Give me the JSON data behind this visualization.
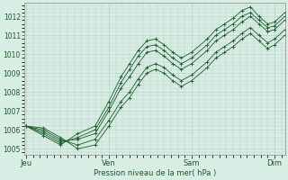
{
  "bg_color": "#d8ede4",
  "grid_color": "#b8d4c8",
  "line_color": "#1a5c28",
  "marker_color": "#1a5c28",
  "xlabel_text": "Pression niveau de la mer( hPa )",
  "x_tick_labels": [
    "Jeu",
    "Ven",
    "Sam",
    "Dim"
  ],
  "x_tick_positions": [
    0,
    96,
    192,
    288
  ],
  "ylim": [
    1004.7,
    1012.7
  ],
  "xlim": [
    -2,
    300
  ],
  "yticks": [
    1005,
    1006,
    1007,
    1008,
    1009,
    1010,
    1011,
    1012
  ],
  "series": [
    [
      0,
      1006.2,
      20,
      1005.8,
      40,
      1005.3,
      60,
      1005.6,
      80,
      1006.0,
      96,
      1007.2,
      110,
      1008.5,
      120,
      1009.2,
      130,
      1009.9,
      140,
      1010.4,
      150,
      1010.5,
      160,
      1010.2,
      170,
      1009.8,
      180,
      1009.5,
      192,
      1009.8,
      210,
      1010.5,
      220,
      1011.0,
      230,
      1011.3,
      240,
      1011.6,
      250,
      1012.0,
      260,
      1012.2,
      270,
      1011.8,
      280,
      1011.4,
      288,
      1011.5,
      300,
      1012.0
    ],
    [
      0,
      1006.2,
      20,
      1005.9,
      40,
      1005.4,
      60,
      1005.5,
      80,
      1005.8,
      96,
      1007.0,
      110,
      1008.2,
      120,
      1008.8,
      130,
      1009.5,
      140,
      1010.1,
      150,
      1010.2,
      160,
      1009.9,
      170,
      1009.5,
      180,
      1009.2,
      192,
      1009.5,
      210,
      1010.2,
      220,
      1010.7,
      230,
      1011.0,
      240,
      1011.3,
      250,
      1011.7,
      260,
      1012.0,
      270,
      1011.6,
      280,
      1011.2,
      288,
      1011.3,
      300,
      1011.8
    ],
    [
      0,
      1006.2,
      20,
      1005.7,
      40,
      1005.2,
      60,
      1005.8,
      80,
      1006.2,
      96,
      1007.5,
      110,
      1008.8,
      120,
      1009.5,
      130,
      1010.2,
      140,
      1010.7,
      150,
      1010.8,
      160,
      1010.5,
      170,
      1010.1,
      180,
      1009.8,
      192,
      1010.1,
      210,
      1010.8,
      220,
      1011.3,
      230,
      1011.6,
      240,
      1011.9,
      250,
      1012.3,
      260,
      1012.5,
      270,
      1012.0,
      280,
      1011.6,
      288,
      1011.7,
      300,
      1012.2
    ],
    [
      0,
      1006.2,
      20,
      1006.0,
      40,
      1005.5,
      60,
      1005.2,
      80,
      1005.5,
      96,
      1006.5,
      110,
      1007.5,
      120,
      1008.0,
      130,
      1008.7,
      140,
      1009.3,
      150,
      1009.5,
      160,
      1009.3,
      170,
      1008.9,
      180,
      1008.6,
      192,
      1008.9,
      210,
      1009.6,
      220,
      1010.1,
      230,
      1010.4,
      240,
      1010.7,
      250,
      1011.1,
      260,
      1011.4,
      270,
      1011.0,
      280,
      1010.6,
      288,
      1010.8,
      300,
      1011.3
    ],
    [
      0,
      1006.2,
      20,
      1006.1,
      40,
      1005.6,
      60,
      1005.0,
      80,
      1005.2,
      96,
      1006.2,
      110,
      1007.2,
      120,
      1007.7,
      130,
      1008.4,
      140,
      1009.0,
      150,
      1009.2,
      160,
      1009.0,
      170,
      1008.6,
      180,
      1008.3,
      192,
      1008.6,
      210,
      1009.3,
      220,
      1009.8,
      230,
      1010.1,
      240,
      1010.4,
      250,
      1010.8,
      260,
      1011.1,
      270,
      1010.7,
      280,
      1010.3,
      288,
      1010.5,
      300,
      1011.0
    ]
  ]
}
